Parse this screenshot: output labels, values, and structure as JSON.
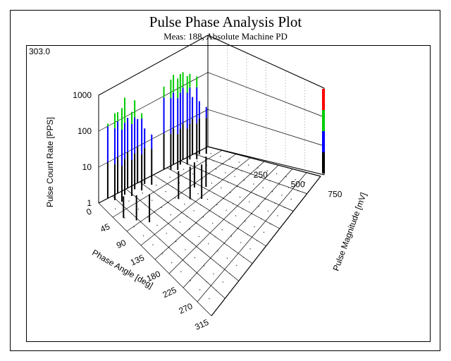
{
  "header": {
    "title": "Pulse Phase Analysis Plot",
    "subtitle": "Meas: 188, Absolute Machine PD"
  },
  "corner_value": "303.0",
  "chart_data": {
    "type": "bar3d",
    "title": "Pulse Phase Analysis Plot",
    "subtitle": "Meas: 188, Absolute Machine PD",
    "zlabel": "Pulse Count Rate [PPS]",
    "xlabel": "Phase Angle [deg]",
    "ylabel": "Pulse Magnitude [mV]",
    "z_scale": "log",
    "z_ticks": [
      "1",
      "10",
      "100",
      "1000"
    ],
    "x_ticks": [
      "0",
      "45",
      "90",
      "135",
      "180",
      "225",
      "270",
      "315"
    ],
    "y_ticks": [
      "250",
      "500",
      "750"
    ],
    "colors": {
      "low": "#000000",
      "mid": "#0000ff",
      "high": "#00cc00",
      "top": "#ff0000"
    },
    "clusters": [
      {
        "phase_range": [
          30,
          150
        ],
        "magnitude_range": [
          0,
          60
        ],
        "counts": [
          120,
          260,
          400,
          180,
          500,
          220,
          90,
          300,
          140,
          60,
          35,
          25
        ]
      },
      {
        "phase_range": [
          215,
          330
        ],
        "magnitude_range": [
          0,
          60
        ],
        "counts": [
          200,
          320,
          350,
          310,
          330,
          290,
          270,
          240,
          200,
          40,
          30,
          20
        ]
      },
      {
        "phase_range": [
          20,
          60
        ],
        "magnitude_range": [
          150,
          260
        ],
        "counts": [
          4,
          5,
          6
        ]
      },
      {
        "phase_range": [
          160,
          230
        ],
        "magnitude_range": [
          250,
          350
        ],
        "counts": [
          6,
          8,
          9,
          5,
          7
        ]
      }
    ]
  }
}
